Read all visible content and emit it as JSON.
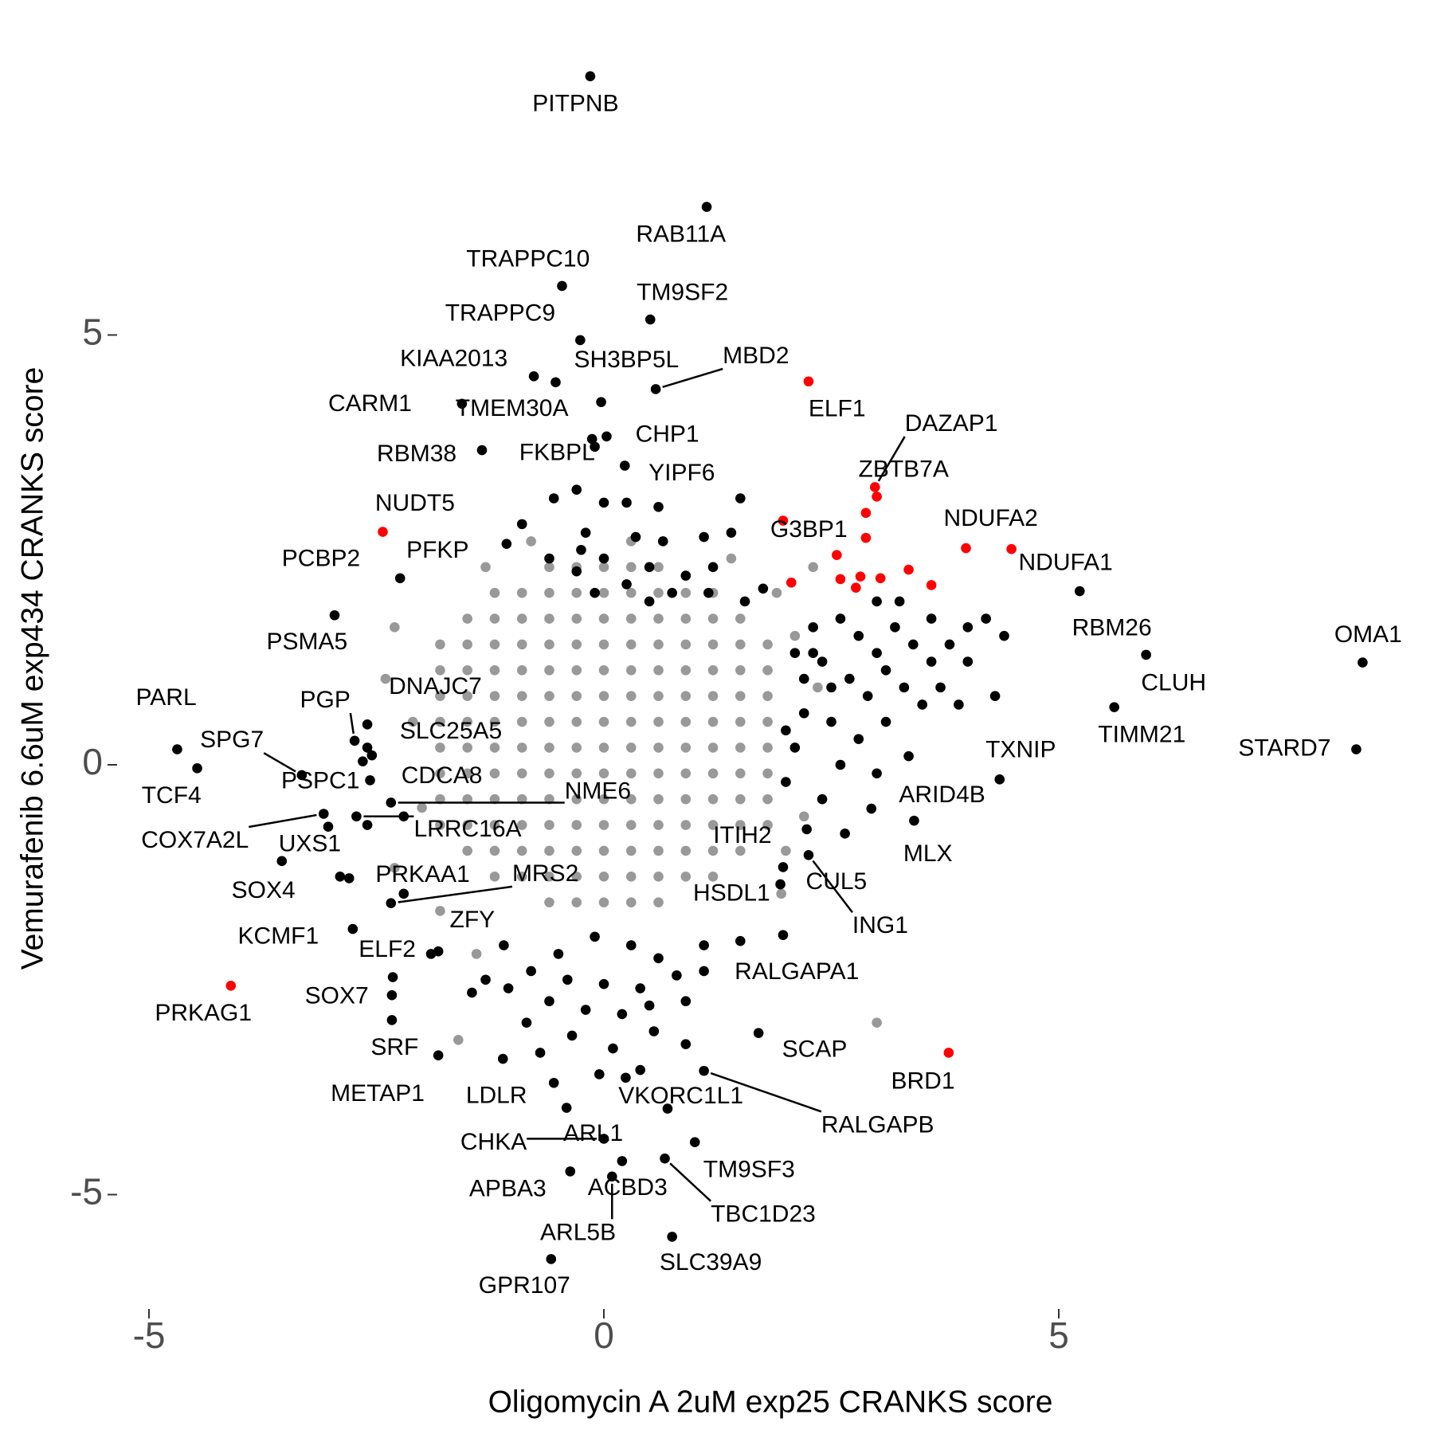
{
  "chart_data": {
    "type": "scatter",
    "x_label": "Oligomycin A 2uM exp25 CRANKS score",
    "y_label": "Vemurafenib 6.6uM exp434 CRANKS score",
    "xlim": [
      -5.1,
      8.6
    ],
    "ylim": [
      -6.2,
      8.3
    ],
    "xticks": [
      -5,
      0,
      5
    ],
    "yticks": [
      -5,
      0,
      5
    ],
    "grid": false,
    "series": [
      {
        "color": "#999999",
        "x": [
          -0.6,
          -0.3,
          0,
          0.3,
          0.6,
          -1.2,
          -0.9,
          -0.6,
          -0.3,
          0,
          0.3,
          0.6,
          0.9,
          1.2,
          -1.5,
          -1.2,
          -0.9,
          -0.6,
          -0.3,
          0,
          0.3,
          0.6,
          0.9,
          1.2,
          1.5,
          -1.8,
          -1.5,
          -1.2,
          -0.9,
          -0.6,
          -0.3,
          0,
          0.3,
          0.6,
          0.9,
          1.2,
          1.5,
          1.8,
          -1.8,
          -1.5,
          -1.2,
          -0.9,
          -0.6,
          -0.3,
          0,
          0.3,
          0.6,
          0.9,
          1.2,
          1.5,
          1.8,
          -1.8,
          -1.5,
          -1.2,
          -0.9,
          -0.6,
          -0.3,
          0,
          0.3,
          0.6,
          0.9,
          1.2,
          1.5,
          1.8,
          -1.8,
          -1.5,
          -1.2,
          -0.9,
          -0.6,
          -0.3,
          0,
          0.3,
          0.6,
          0.9,
          1.2,
          1.5,
          1.8,
          -1.8,
          -1.5,
          -1.2,
          -0.9,
          -0.6,
          -0.3,
          0,
          0.3,
          0.6,
          0.9,
          1.2,
          1.5,
          1.8,
          -1.8,
          -1.5,
          -1.2,
          -0.9,
          -0.6,
          -0.3,
          0,
          0.3,
          0.6,
          0.9,
          1.2,
          1.5,
          1.8,
          -1.8,
          -1.5,
          -1.2,
          -0.9,
          -0.6,
          -0.3,
          0,
          0.3,
          0.6,
          0.9,
          1.2,
          1.5,
          1.8,
          -1.8,
          -1.5,
          -1.2,
          -0.9,
          -0.6,
          -0.3,
          0,
          0.3,
          0.6,
          0.9,
          1.2,
          1.5,
          1.8,
          -1.5,
          -1.2,
          -0.9,
          -0.6,
          -0.3,
          0,
          0.3,
          0.6,
          0.9,
          1.2,
          1.5,
          -1.2,
          -0.9,
          -0.6,
          -0.3,
          0,
          0.3,
          0.6,
          0.9,
          1.2,
          -0.6,
          -0.3,
          0,
          0.3,
          0.6,
          -2.3,
          -2.1,
          -2.0,
          -2.3,
          1.9,
          2.3,
          2.1,
          2.0,
          1.95,
          3.0,
          -1.6,
          -1.4,
          -1.8,
          2.2,
          -1.3,
          -0.8,
          0.3,
          1.4,
          -2.4,
          2.35
        ],
        "values": [
          2.3,
          2.3,
          2.3,
          2.3,
          2.3,
          2.0,
          2.0,
          2.0,
          2.0,
          2.0,
          2.0,
          2.0,
          2.0,
          2.0,
          1.7,
          1.7,
          1.7,
          1.7,
          1.7,
          1.7,
          1.7,
          1.7,
          1.7,
          1.7,
          1.7,
          1.4,
          1.4,
          1.4,
          1.4,
          1.4,
          1.4,
          1.4,
          1.4,
          1.4,
          1.4,
          1.4,
          1.4,
          1.4,
          1.1,
          1.1,
          1.1,
          1.1,
          1.1,
          1.1,
          1.1,
          1.1,
          1.1,
          1.1,
          1.1,
          1.1,
          1.1,
          0.8,
          0.8,
          0.8,
          0.8,
          0.8,
          0.8,
          0.8,
          0.8,
          0.8,
          0.8,
          0.8,
          0.8,
          0.8,
          0.5,
          0.5,
          0.5,
          0.5,
          0.5,
          0.5,
          0.5,
          0.5,
          0.5,
          0.5,
          0.5,
          0.5,
          0.5,
          0.2,
          0.2,
          0.2,
          0.2,
          0.2,
          0.2,
          0.2,
          0.2,
          0.2,
          0.2,
          0.2,
          0.2,
          0.2,
          -0.1,
          -0.1,
          -0.1,
          -0.1,
          -0.1,
          -0.1,
          -0.1,
          -0.1,
          -0.1,
          -0.1,
          -0.1,
          -0.1,
          -0.1,
          -0.4,
          -0.4,
          -0.4,
          -0.4,
          -0.4,
          -0.4,
          -0.4,
          -0.4,
          -0.4,
          -0.4,
          -0.4,
          -0.4,
          -0.4,
          -0.7,
          -0.7,
          -0.7,
          -0.7,
          -0.7,
          -0.7,
          -0.7,
          -0.7,
          -0.7,
          -0.7,
          -0.7,
          -0.7,
          -0.7,
          -1.0,
          -1.0,
          -1.0,
          -1.0,
          -1.0,
          -1.0,
          -1.0,
          -1.0,
          -1.0,
          -1.0,
          -1.0,
          -1.3,
          -1.3,
          -1.3,
          -1.3,
          -1.3,
          -1.3,
          -1.3,
          -1.3,
          -1.3,
          -1.6,
          -1.6,
          -1.6,
          -1.6,
          -1.6,
          1.6,
          0.5,
          -0.5,
          -1.2,
          2.0,
          2.3,
          1.5,
          -1.0,
          -1.5,
          -3.0,
          -3.2,
          -2.2,
          -1.7,
          -0.6,
          2.3,
          2.6,
          2.6,
          2.4,
          1.0,
          0.9
        ]
      },
      {
        "color": "#000000",
        "x": [
          -0.1,
          0.0,
          -0.55,
          -0.3,
          -0.9,
          -0.2,
          0.35,
          0.65,
          1.1,
          1.4,
          0.0,
          0.5,
          0.9,
          1.2,
          -0.6,
          -0.3,
          0.25,
          0.75,
          1.15,
          -0.1,
          0.5,
          1.5,
          0.6,
          0.25,
          -0.25,
          1.75,
          1.55,
          2.1,
          2.3,
          2.4,
          2.6,
          2.8,
          3.0,
          3.2,
          3.4,
          3.6,
          2.5,
          2.7,
          2.9,
          3.1,
          3.3,
          2.2,
          2.5,
          2.8,
          3.1,
          3.5,
          3.7,
          2.1,
          2.6,
          3.0,
          2.4,
          2.0,
          3.8,
          4.0,
          4.2,
          4.4,
          4.0,
          3.9,
          4.3,
          2.0,
          2.2,
          3.35,
          2.65,
          3.25,
          3.6,
          2.3,
          3.0,
          -1.1,
          -0.5,
          -0.1,
          0.3,
          0.6,
          1.1,
          -0.8,
          -0.4,
          0.0,
          0.4,
          0.8,
          -1.05,
          -0.6,
          -0.2,
          0.2,
          0.5,
          0.9,
          -0.85,
          -0.35,
          0.1,
          0.55,
          0.9,
          -0.7,
          -0.05,
          0.4,
          -0.55,
          0.7,
          1.1,
          1.5,
          -1.3,
          -1.45,
          -1.9,
          -2.6,
          -2.2,
          -2.9,
          -2.6,
          -2.2
        ],
        "values": [
          3.7,
          3.05,
          3.1,
          3.2,
          2.8,
          2.7,
          2.65,
          2.6,
          2.65,
          2.7,
          2.4,
          2.3,
          2.2,
          2.3,
          2.4,
          2.25,
          2.1,
          2.0,
          2.0,
          2.0,
          1.9,
          3.1,
          3.0,
          3.05,
          2.5,
          2.05,
          1.9,
          1.3,
          1.6,
          1.2,
          1.7,
          1.5,
          1.3,
          1.6,
          1.4,
          1.7,
          0.9,
          1.0,
          0.8,
          1.1,
          0.9,
          0.6,
          0.5,
          0.3,
          0.5,
          0.7,
          0.9,
          0.2,
          0.0,
          -0.1,
          -0.4,
          0.4,
          1.4,
          1.6,
          1.7,
          1.5,
          1.2,
          0.7,
          0.8,
          -0.2,
          1.0,
          0.1,
          -0.8,
          1.9,
          1.2,
          1.3,
          1.9,
          -2.1,
          -2.2,
          -2.0,
          -2.1,
          -2.25,
          -2.1,
          -2.4,
          -2.5,
          -2.55,
          -2.6,
          -2.45,
          -2.6,
          -2.75,
          -2.85,
          -2.9,
          -2.8,
          -2.75,
          -3.0,
          -3.15,
          -3.3,
          -3.1,
          -3.25,
          -3.35,
          -3.6,
          -3.55,
          -3.7,
          -4.0,
          -2.4,
          -2.05,
          -2.5,
          -2.65,
          -2.2,
          -0.7,
          -1.5,
          -1.3,
          0.2,
          -0.6
        ]
      },
      {
        "color": "#ff0000",
        "x": [
          2.88,
          2.56,
          2.6,
          2.82,
          3.04,
          3.35,
          3.6,
          2.77,
          3.0,
          2.06
        ],
        "values": [
          2.64,
          2.44,
          2.16,
          2.19,
          2.17,
          2.27,
          2.09,
          2.06,
          3.12,
          2.12
        ]
      },
      {
        "color": "#000000",
        "labels": [
          "PITPNB",
          "RAB11A",
          "TRAPPC10",
          "TM9SF2",
          "TRAPPC9",
          "KIAA2013",
          "SH3BP5L",
          "MBD2",
          "CARM1",
          "TMEM30A",
          "CHP1",
          "RBM38",
          "FKBPL",
          "YIPF6",
          "PCBP2",
          "PFKP",
          "PSMA5",
          "RBM26",
          "OMA1",
          "CLUH",
          "TIMM21",
          "STARD7",
          "TXNIP",
          "PARL",
          "TCF4",
          "SPG7",
          "PGP",
          "DNAJC7",
          "SLC25A5",
          "PSPC1",
          "CDCA8",
          "NME6",
          "COX7A2L",
          "UXS1",
          "LRRC16A",
          "ARID4B",
          "MLX",
          "ITIH2",
          "CUL5",
          "ING1",
          "SOX4",
          "PRKAA1",
          "MRS2",
          "HSDL1",
          "KCMF1",
          "ZFY",
          "ELF2",
          "RALGAPA1",
          "SOX7",
          "SRF",
          "SCAP",
          "METAP1",
          "LDLR",
          "RALGAPB",
          "VKORC1L1",
          "ARL1",
          "CHKA",
          "TM9SF3",
          "APBA3",
          "ACBD3",
          "TBC1D23",
          "ARL5B",
          "SLC39A9",
          "GPR107"
        ],
        "x": [
          -0.15,
          1.13,
          -0.46,
          0.51,
          -0.26,
          -0.77,
          -0.53,
          0.57,
          -1.56,
          -0.03,
          0.03,
          -1.34,
          -0.13,
          0.23,
          -2.24,
          -1.07,
          -2.96,
          5.23,
          8.34,
          5.96,
          5.61,
          8.27,
          4.35,
          -4.69,
          -4.47,
          -3.32,
          -2.74,
          -2.6,
          -2.55,
          -2.57,
          -2.65,
          -2.34,
          -3.08,
          -3.03,
          -2.72,
          2.94,
          3.41,
          2.23,
          1.97,
          2.25,
          -3.54,
          -2.8,
          -2.34,
          1.94,
          -2.76,
          -1.82,
          -2.32,
          1.97,
          -2.33,
          -2.33,
          1.7,
          -1.82,
          -1.11,
          1.1,
          0.24,
          -0.41,
          0.0,
          1.0,
          -0.37,
          0.2,
          0.67,
          0.09,
          0.75,
          -0.58
        ],
        "values": [
          8.01,
          6.49,
          5.57,
          5.18,
          4.94,
          4.52,
          4.45,
          4.37,
          4.2,
          4.22,
          3.82,
          3.66,
          3.79,
          3.48,
          2.17,
          2.57,
          1.74,
          2.02,
          1.19,
          1.28,
          0.67,
          0.18,
          -0.17,
          0.18,
          -0.04,
          -0.12,
          0.28,
          0.47,
          0.11,
          -0.18,
          0.04,
          -0.44,
          -0.57,
          -0.72,
          -0.6,
          -0.51,
          -0.65,
          -0.75,
          -1.19,
          -1.05,
          -1.12,
          -1.32,
          -1.61,
          -1.39,
          -1.91,
          -2.17,
          -2.47,
          -1.98,
          -2.68,
          -2.97,
          -3.12,
          -3.38,
          -3.42,
          -3.56,
          -3.64,
          -3.99,
          -4.35,
          -4.39,
          -4.73,
          -4.61,
          -4.58,
          -4.79,
          -5.49,
          -5.75
        ]
      },
      {
        "color": "#ff0000",
        "labels": [
          "ELF1",
          "DAZAP1",
          "ZBTB7A",
          "NUDT5",
          "G3BP1",
          "NDUFA2",
          "NDUFA1",
          "PRKAG1",
          "BRD1"
        ],
        "x": [
          2.25,
          2.98,
          2.88,
          -2.43,
          1.97,
          3.98,
          4.48,
          -4.1,
          3.79
        ],
        "values": [
          4.46,
          3.23,
          2.93,
          2.71,
          2.84,
          2.52,
          2.51,
          -2.57,
          -3.35
        ]
      }
    ]
  }
}
